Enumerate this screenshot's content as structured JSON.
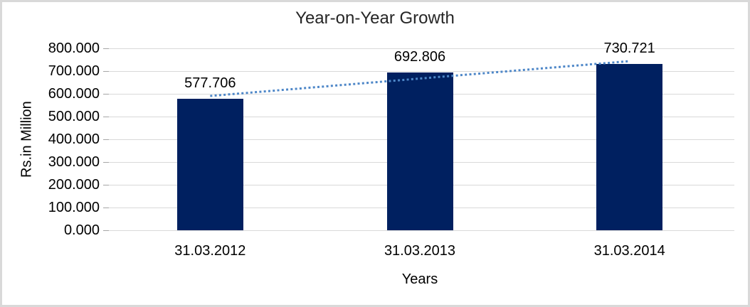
{
  "chart_data": {
    "type": "bar",
    "title": "Year-on-Year Growth",
    "xlabel": "Years",
    "ylabel": "Rs.in Million",
    "categories": [
      "31.03.2012",
      "31.03.2013",
      "31.03.2014"
    ],
    "values": [
      577.706,
      692.806,
      730.721
    ],
    "data_labels": [
      "577.706",
      "692.806",
      "730.721"
    ],
    "ylim": [
      0,
      800
    ],
    "ytick_step": 100,
    "ytick_labels": [
      "0.000",
      "100.000",
      "200.000",
      "300.000",
      "400.000",
      "500.000",
      "600.000",
      "700.000",
      "800.000"
    ],
    "grid": true,
    "legend": "none",
    "trendline": {
      "type": "linear",
      "style": "dotted",
      "start_value": 590.6,
      "end_value": 743.6
    },
    "colors": {
      "bar_fill": "#002060",
      "trendline": "#4E87C8",
      "gridline": "#D9D9D9",
      "tick_mark": "#A6A6A6",
      "label_text": "#000000",
      "title_text": "#262626",
      "frame_border": "#D9D9D9",
      "background": "#FFFFFF"
    }
  }
}
